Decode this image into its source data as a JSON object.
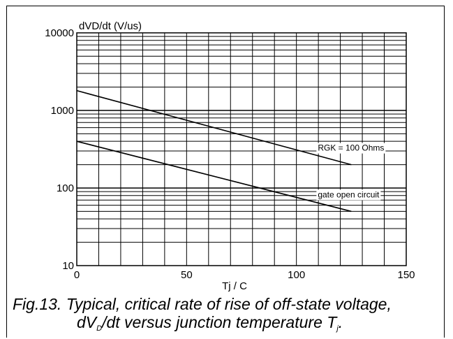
{
  "chart_data": {
    "type": "line",
    "title": "",
    "ylabel": "dVD/dt (V/us)",
    "xlabel": "Tj / C",
    "xlim": [
      0,
      150
    ],
    "ylim": [
      10,
      10000
    ],
    "yscale": "log",
    "grid": true,
    "xticks": [
      "0",
      "50",
      "100",
      "150"
    ],
    "yticks": [
      "10",
      "100",
      "1000",
      "10000"
    ],
    "series": [
      {
        "name": "RGK = 100 Ohms",
        "x": [
          0,
          125
        ],
        "y": [
          1800,
          200
        ],
        "color": "#000000"
      },
      {
        "name": "gate open circuit",
        "x": [
          0,
          125
        ],
        "y": [
          400,
          50
        ],
        "color": "#000000"
      }
    ]
  },
  "caption": {
    "line1": "Fig.13.  Typical, critical rate of rise of off-state voltage,",
    "line2_pre": "dV",
    "line2_sub": "D",
    "line2_mid": "/dt versus junction temperature T",
    "line2_sub2": "j",
    "line2_post": "."
  }
}
